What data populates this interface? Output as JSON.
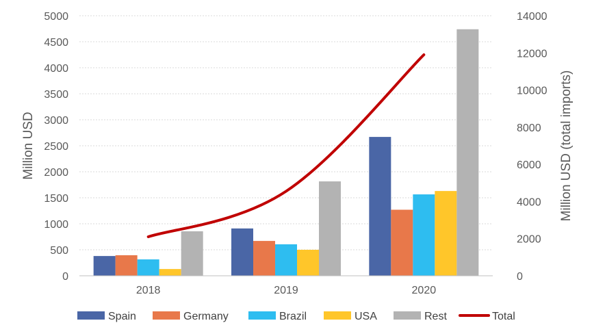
{
  "chart_data": {
    "type": "bar",
    "categories": [
      "2018",
      "2019",
      "2020"
    ],
    "series": [
      {
        "name": "Spain",
        "color": "#4a66a6",
        "values": [
          380,
          910,
          2670
        ]
      },
      {
        "name": "Germany",
        "color": "#e8784a",
        "values": [
          395,
          670,
          1270
        ]
      },
      {
        "name": "Brazil",
        "color": "#2ebdf0",
        "values": [
          315,
          605,
          1565
        ]
      },
      {
        "name": "USA",
        "color": "#ffc62a",
        "values": [
          130,
          500,
          1630
        ]
      },
      {
        "name": "Rest",
        "color": "#b3b3b3",
        "values": [
          855,
          1815,
          4740
        ]
      }
    ],
    "line_series": {
      "name": "Total",
      "color": "#c00000",
      "axis": "right",
      "values": [
        2100,
        4550,
        11900
      ]
    },
    "ylabel": "Million USD",
    "y2label": "Million USD (total imports)",
    "xlabel": "",
    "ylim": [
      0,
      5000
    ],
    "y2lim": [
      0,
      14000
    ],
    "yticks": [
      0,
      500,
      1000,
      1500,
      2000,
      2500,
      3000,
      3500,
      4000,
      4500,
      5000
    ],
    "y2ticks": [
      0,
      2000,
      4000,
      6000,
      8000,
      10000,
      12000,
      14000
    ],
    "grid": true,
    "legend_position": "bottom"
  }
}
